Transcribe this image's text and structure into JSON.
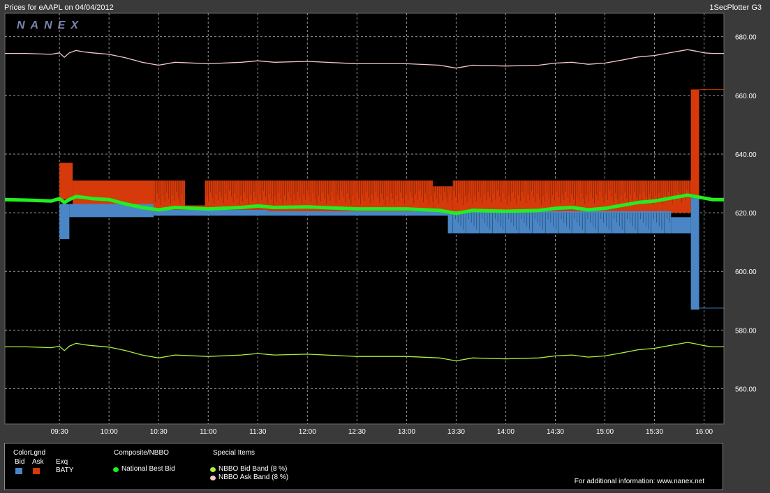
{
  "header": {
    "prices_label": "Prices for  eAAPL  on  04/04/2012",
    "plotter_label": "1SecPlotter G3"
  },
  "watermark": "NANEX",
  "colors": {
    "bid": "#4a86c5",
    "ask": "#d63a0a",
    "nbbo": "#22ee22",
    "bid_band": "#aaf03a",
    "ask_band": "#f4c8c8",
    "grid": "#9a9a9a",
    "background": "#000000",
    "frame": "#3a3a3a"
  },
  "chart_data": {
    "type": "line",
    "title": "Prices for  eAAPL  on  04/04/2012",
    "ylim": [
      548,
      688
    ],
    "y_ticks": [
      "560.00",
      "580.00",
      "600.00",
      "620.00",
      "640.00",
      "660.00",
      "680.00"
    ],
    "y_tick_values": [
      560,
      580,
      600,
      620,
      640,
      660,
      680
    ],
    "x_ticks": [
      "09:30",
      "10:00",
      "10:30",
      "11:00",
      "11:30",
      "12:00",
      "12:30",
      "13:00",
      "13:30",
      "14:00",
      "14:30",
      "15:00",
      "15:30",
      "16:00"
    ],
    "x_tick_values": [
      570,
      600,
      630,
      660,
      690,
      720,
      750,
      780,
      810,
      840,
      870,
      900,
      930,
      960
    ],
    "xlim": [
      537,
      972
    ],
    "grid": true,
    "series": [
      {
        "name": "National Best Bid",
        "x": [
          537,
          550,
          565,
          570,
          573,
          576,
          580,
          585,
          590,
          600,
          610,
          620,
          630,
          640,
          660,
          680,
          690,
          700,
          720,
          750,
          780,
          800,
          810,
          820,
          840,
          860,
          870,
          880,
          890,
          900,
          910,
          920,
          930,
          940,
          945,
          950,
          955,
          960,
          965,
          972
        ],
        "values": [
          624.5,
          624.3,
          624.0,
          624.8,
          623.5,
          624.5,
          625.5,
          625.2,
          624.8,
          624.5,
          623.0,
          621.8,
          621.0,
          621.8,
          621.3,
          621.8,
          622.3,
          621.8,
          622.0,
          621.3,
          621.3,
          620.8,
          619.8,
          620.8,
          620.5,
          620.8,
          621.5,
          621.8,
          621.0,
          621.5,
          622.5,
          623.5,
          624.0,
          625.0,
          625.5,
          626.0,
          625.5,
          625.0,
          624.5,
          624.5
        ]
      },
      {
        "name": "NBBO Bid Band (8 %)",
        "x": [
          537,
          550,
          565,
          570,
          573,
          576,
          580,
          585,
          590,
          600,
          610,
          620,
          630,
          640,
          660,
          680,
          690,
          700,
          720,
          750,
          780,
          800,
          810,
          820,
          840,
          860,
          870,
          880,
          890,
          900,
          910,
          920,
          930,
          940,
          945,
          950,
          955,
          960,
          965,
          972
        ],
        "values": [
          574.3,
          574.3,
          574.0,
          574.5,
          573.0,
          574.5,
          575.5,
          575.0,
          574.7,
          574.2,
          573.0,
          571.5,
          570.5,
          571.5,
          571.0,
          571.5,
          572.0,
          571.5,
          571.8,
          571.0,
          571.0,
          570.5,
          569.5,
          570.5,
          570.2,
          570.5,
          571.2,
          571.5,
          570.8,
          571.2,
          572.2,
          573.3,
          573.8,
          574.8,
          575.3,
          575.8,
          575.3,
          574.7,
          574.3,
          574.3
        ]
      },
      {
        "name": "NBBO Ask Band (8 %)",
        "x": [
          537,
          550,
          565,
          570,
          573,
          576,
          580,
          585,
          590,
          600,
          610,
          620,
          630,
          640,
          660,
          680,
          690,
          700,
          720,
          750,
          780,
          800,
          810,
          820,
          840,
          860,
          870,
          880,
          890,
          900,
          910,
          920,
          930,
          940,
          945,
          950,
          955,
          960,
          965,
          972
        ],
        "values": [
          674.3,
          674.3,
          674.0,
          674.5,
          673.0,
          674.5,
          675.3,
          674.8,
          674.5,
          674.0,
          672.8,
          671.3,
          670.3,
          671.3,
          670.8,
          671.3,
          671.8,
          671.3,
          671.6,
          670.8,
          670.8,
          670.3,
          669.3,
          670.3,
          670.0,
          670.3,
          671.0,
          671.3,
          670.6,
          671.0,
          672.0,
          673.1,
          673.6,
          674.6,
          675.1,
          675.6,
          675.1,
          674.5,
          674.3,
          674.3
        ]
      }
    ],
    "exchange_ask_blocks": [
      {
        "x": [
          570,
          578
        ],
        "low": 624.5,
        "high": 637
      },
      {
        "x": [
          578,
          627
        ],
        "low": 622,
        "high": 631
      },
      {
        "x": [
          627,
          646
        ],
        "low": 621,
        "high": 631
      },
      {
        "x": [
          646,
          658
        ],
        "low": 621,
        "high": 622.5
      },
      {
        "x": [
          658,
          696
        ],
        "low": 621,
        "high": 631
      },
      {
        "x": [
          696,
          796
        ],
        "low": 620.5,
        "high": 631
      },
      {
        "x": [
          796,
          808
        ],
        "low": 619.5,
        "high": 629
      },
      {
        "x": [
          808,
          952
        ],
        "low": 620,
        "high": 631
      },
      {
        "x": [
          952,
          957
        ],
        "low": 625,
        "high": 662
      }
    ],
    "exchange_bid_blocks": [
      {
        "x": [
          570,
          576
        ],
        "low": 611,
        "high": 623
      },
      {
        "x": [
          576,
          627
        ],
        "low": 618.5,
        "high": 623
      },
      {
        "x": [
          627,
          696
        ],
        "low": 619,
        "high": 621
      },
      {
        "x": [
          696,
          805
        ],
        "low": 619,
        "high": 620.5
      },
      {
        "x": [
          805,
          940
        ],
        "low": 613,
        "high": 620.5
      },
      {
        "x": [
          940,
          952
        ],
        "low": 613,
        "high": 618.5
      },
      {
        "x": [
          952,
          957
        ],
        "low": 587,
        "high": 625
      }
    ],
    "ask_after_close": 662,
    "bid_after_close": 587.5
  },
  "legend": {
    "colorlgnd_title": "ColorLgnd",
    "bid_label": "Bid",
    "ask_label": "Ask",
    "exq_label": "Exq",
    "exchange_code": "BATY",
    "composite_title": "Composite/NBBO",
    "national_best_bid": "National Best Bid",
    "special_title": "Special Items",
    "bid_band_label": "NBBO Bid Band (8 %)",
    "ask_band_label": "NBBO Ask Band (8 %)",
    "info": "For additional information: www.nanex.net"
  }
}
